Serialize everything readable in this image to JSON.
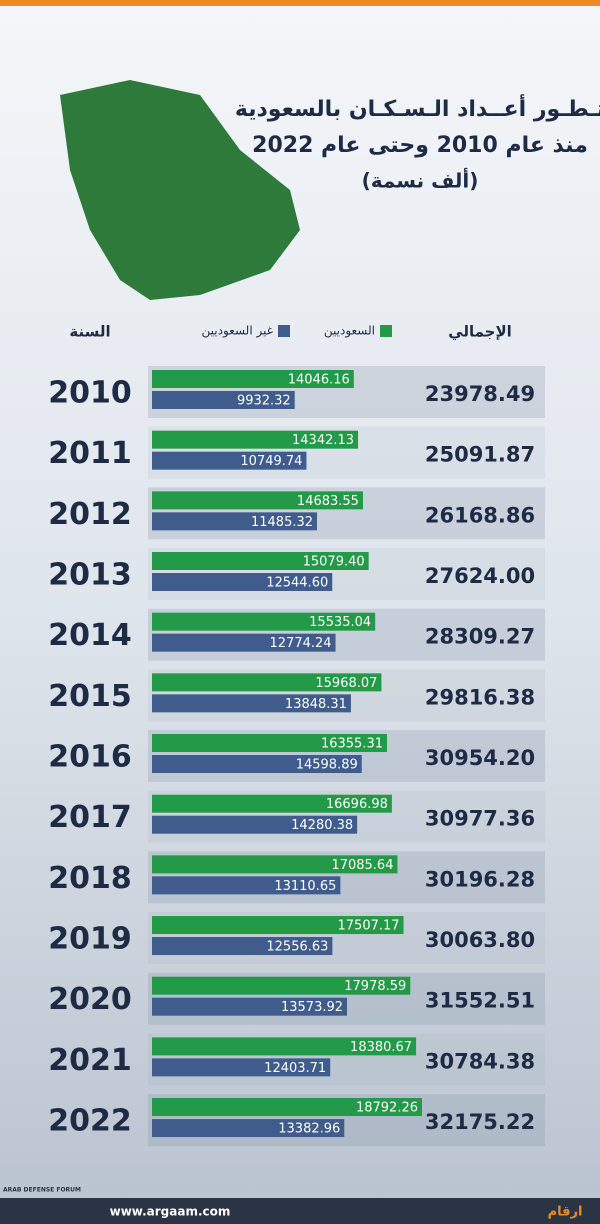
{
  "chart_data": {
    "type": "bar",
    "title": "تـطـور أعــداد الـسـكـان بالسعودية",
    "subtitle": "منذ عام  2010 وحتى عام  2022",
    "unit_note": "(ألف نسمة)",
    "category_label": "السنة",
    "categories": [
      "2010",
      "2011",
      "2012",
      "2013",
      "2014",
      "2015",
      "2016",
      "2017",
      "2018",
      "2019",
      "2020",
      "2021",
      "2022"
    ],
    "series": [
      {
        "name": "السعوديين",
        "color": "#239a48",
        "values": [
          14046.16,
          14342.13,
          14683.55,
          15079.4,
          15535.04,
          15968.07,
          16355.31,
          16696.98,
          17085.64,
          17507.17,
          17978.59,
          18380.67,
          18792.26
        ],
        "value_labels": [
          "14046.16",
          "14342.13",
          "14683.55",
          "15079.40",
          "15535.04",
          "15968.07",
          "16355.31",
          "16696.98",
          "17085.64",
          "17507.17",
          "17978.59",
          "18380.67",
          "18792.26"
        ]
      },
      {
        "name": "غير السعوديين",
        "color": "#3f5c8c",
        "values": [
          9932.32,
          10749.74,
          11485.32,
          12544.6,
          12774.24,
          13848.31,
          14598.89,
          14280.38,
          13110.65,
          12556.63,
          13573.92,
          12403.71,
          13382.96
        ],
        "value_labels": [
          "9932.32",
          "10749.74",
          "11485.32",
          "12544.60",
          "12774.24",
          "13848.31",
          "14598.89",
          "14280.38",
          "13110.65",
          "12556.63",
          "13573.92",
          "12403.71",
          "13382.96"
        ]
      }
    ],
    "totals": {
      "name": "الإجمالي",
      "values": [
        23978.49,
        25091.87,
        26168.86,
        27624.0,
        28309.27,
        29816.38,
        30954.2,
        30977.36,
        30196.28,
        30063.8,
        31552.51,
        30784.38,
        32175.22
      ],
      "value_labels": [
        "23978.49",
        "25091.87",
        "26168.86",
        "27624.00",
        "28309.27",
        "29816.38",
        "30954.20",
        "30977.36",
        "30196.28",
        "30063.80",
        "31552.51",
        "30784.38",
        "32175.22"
      ]
    },
    "footer": {
      "url": "www.argaam.com",
      "logo": "ارقام",
      "watermark": "ARAB DEFENSE FORUM"
    }
  }
}
